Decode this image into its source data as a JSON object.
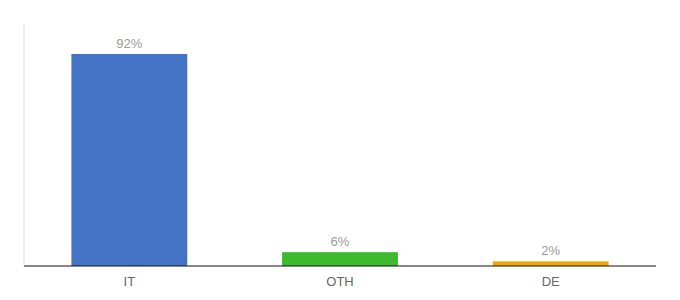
{
  "chart_data": {
    "type": "bar",
    "categories": [
      "IT",
      "OTH",
      "DE"
    ],
    "values": [
      92,
      6,
      2
    ],
    "value_labels": [
      "92%",
      "6%",
      "2%"
    ],
    "colors": [
      "#4472c4",
      "#3dba2e",
      "#f0a500"
    ],
    "ylim": [
      0,
      105
    ],
    "data_labels": true,
    "tick_labels": "x",
    "grid": false
  }
}
